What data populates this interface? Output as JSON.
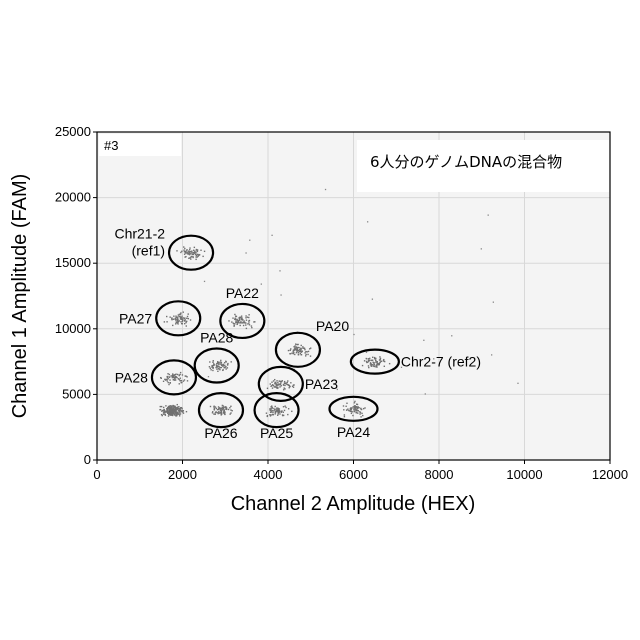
{
  "chart_data": {
    "type": "scatter",
    "title": "6人分のゲノムDNAの混合物",
    "plate_label": "#3",
    "xlabel": "Channel 2 Amplitude (HEX)",
    "ylabel": "Channel 1 Amplitude (FAM)",
    "xlim": [
      0,
      12000
    ],
    "ylim": [
      0,
      25000
    ],
    "xticks": [
      0,
      2000,
      4000,
      6000,
      8000,
      10000,
      12000
    ],
    "yticks": [
      0,
      5000,
      10000,
      15000,
      20000,
      25000
    ],
    "grid": true,
    "clusters": [
      {
        "label": "Chr21-2\n(ref1)",
        "x": 2200,
        "y": 15800,
        "label_side": "left"
      },
      {
        "label": "PA27",
        "x": 1900,
        "y": 10800,
        "label_side": "left"
      },
      {
        "label": "PA22",
        "x": 3400,
        "y": 10600,
        "label_side": "top"
      },
      {
        "label": "PA20",
        "x": 4700,
        "y": 8400,
        "label_side": "top-right"
      },
      {
        "label": "PA28",
        "x": 2800,
        "y": 7200,
        "label_side": "top"
      },
      {
        "label": "Chr2-7 (ref2)",
        "x": 6500,
        "y": 7500,
        "label_side": "right"
      },
      {
        "label": "PA28",
        "x": 1800,
        "y": 6300,
        "label_side": "left"
      },
      {
        "label": "PA23",
        "x": 4300,
        "y": 5800,
        "label_side": "right"
      },
      {
        "label": "PA26",
        "x": 2900,
        "y": 3800,
        "label_side": "bottom"
      },
      {
        "label": "PA25",
        "x": 4200,
        "y": 3800,
        "label_side": "bottom"
      },
      {
        "label": "PA24",
        "x": 6000,
        "y": 3900,
        "label_side": "bottom"
      },
      {
        "label": "",
        "x": 1750,
        "y": 3800,
        "label_side": "none"
      }
    ],
    "colors": {
      "points": "#707070",
      "ellipse": "#000000",
      "grid": "#d8d8d8",
      "plot_bg": "#f4f4f4"
    }
  }
}
